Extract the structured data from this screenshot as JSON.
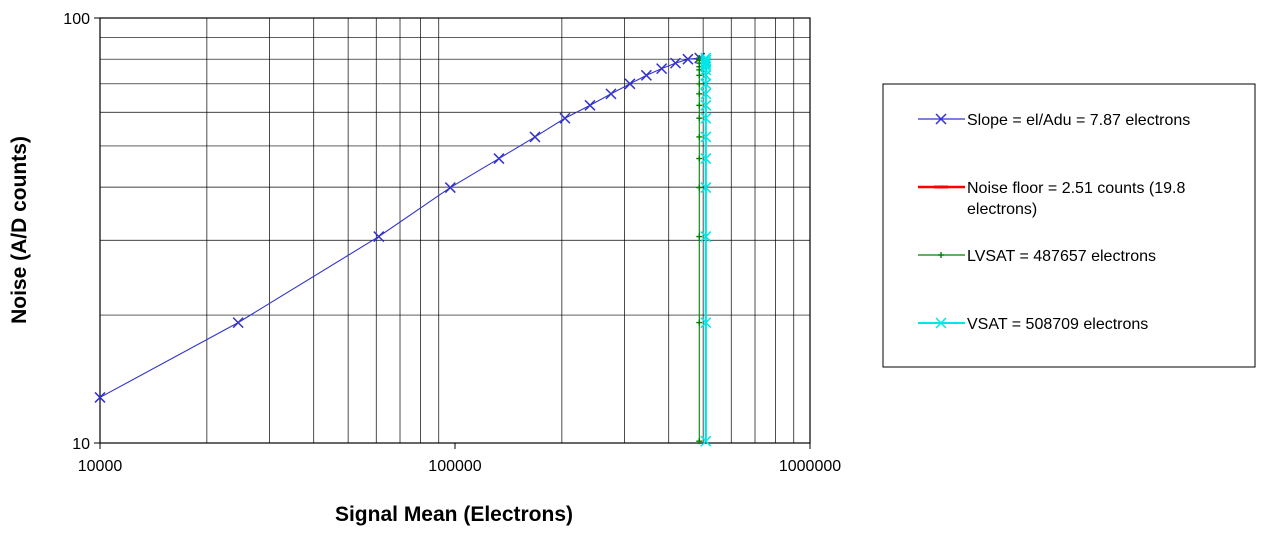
{
  "chart_data": {
    "type": "line",
    "title": "",
    "xlabel": "Signal Mean (Electrons)",
    "ylabel": "Noise (A/D counts)",
    "x_scale": "log",
    "y_scale": "log",
    "xlim": [
      10000,
      1000000
    ],
    "ylim": [
      10,
      100
    ],
    "x_ticks": [
      {
        "value": 10000,
        "label": "10000"
      },
      {
        "value": 100000,
        "label": "100000"
      },
      {
        "value": 1000000,
        "label": "1000000"
      }
    ],
    "y_ticks": [
      {
        "value": 10,
        "label": "10"
      },
      {
        "value": 100,
        "label": "100"
      }
    ],
    "grid": true,
    "legend_position": "right",
    "series": [
      {
        "name": "Slope = el/Adu = 7.87 electrons",
        "color": "#3333cc",
        "marker": "x",
        "x": [
          10000,
          24500,
          61000,
          97000,
          133000,
          168000,
          204000,
          240000,
          275000,
          311000,
          346000,
          382000,
          418000,
          453000,
          489000
        ],
        "y": [
          12.8,
          19.2,
          30.6,
          39.9,
          46.7,
          52.5,
          58.1,
          62.3,
          66.3,
          70.0,
          73.3,
          76.0,
          78.3,
          80.0,
          80.5
        ]
      },
      {
        "name": "Noise floor = 2.51 counts (19.8 electrons)",
        "color": "#ff0000",
        "marker": "dash",
        "x": [],
        "y": []
      },
      {
        "name": "LVSAT = 487657 electrons",
        "color": "#008000",
        "marker": "plus",
        "x": [
          487657,
          487657,
          487657,
          487657,
          487657,
          487657,
          487657,
          487657,
          487657,
          487657,
          487657,
          487657,
          487657,
          487657,
          487657,
          487657
        ],
        "y": [
          10.1,
          19.2,
          30.6,
          39.9,
          46.7,
          52.5,
          58.1,
          62.3,
          66.3,
          70.0,
          73.3,
          75.5,
          76.8,
          78.3,
          79.5,
          80.5
        ]
      },
      {
        "name": "VSAT = 508709 electrons",
        "color": "#00e5e5",
        "marker": "x",
        "x": [
          508709,
          508709,
          508709,
          508709,
          508709,
          508709,
          508709,
          508709,
          508709,
          508709,
          508709,
          508709,
          508709,
          508709,
          508709,
          508709,
          508709
        ],
        "y": [
          10.1,
          19.2,
          30.6,
          39.9,
          46.7,
          52.5,
          58.1,
          62.3,
          66.3,
          70.0,
          73.3,
          75.5,
          76.8,
          77.8,
          78.6,
          79.6,
          80.5
        ]
      }
    ]
  }
}
